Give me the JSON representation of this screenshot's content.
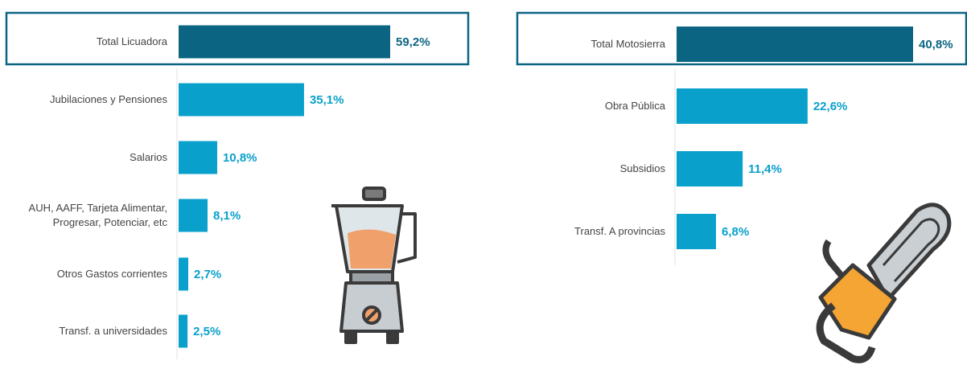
{
  "chart_data": [
    {
      "type": "bar",
      "categories": [
        "Total Licuadora",
        "Jubilaciones y Pensiones",
        "Salarios",
        "AUH, AAFF, Tarjeta Alimentar, Progresar, Potenciar, etc",
        "Otros Gastos corrientes",
        "Transf. a universidades"
      ],
      "values": [
        59.2,
        35.1,
        10.8,
        8.1,
        2.7,
        2.5
      ],
      "value_labels": [
        "59,2%",
        "35,1%",
        "10,8%",
        "8,1%",
        "2,7%",
        "2,5%"
      ],
      "colors": [
        "#0b6582",
        "#0aa0cc",
        "#0aa0cc",
        "#0aa0cc",
        "#0aa0cc",
        "#0aa0cc"
      ]
    },
    {
      "type": "bar",
      "categories": [
        "Total Motosierra",
        "Obra Pública",
        "Subsidios",
        "Transf. A provincias"
      ],
      "values": [
        40.8,
        22.6,
        11.4,
        6.8
      ],
      "value_labels": [
        "40,8%",
        "22,6%",
        "11,4%",
        "6,8%"
      ],
      "colors": [
        "#0b6582",
        "#0aa0cc",
        "#0aa0cc",
        "#0aa0cc"
      ]
    }
  ]
}
